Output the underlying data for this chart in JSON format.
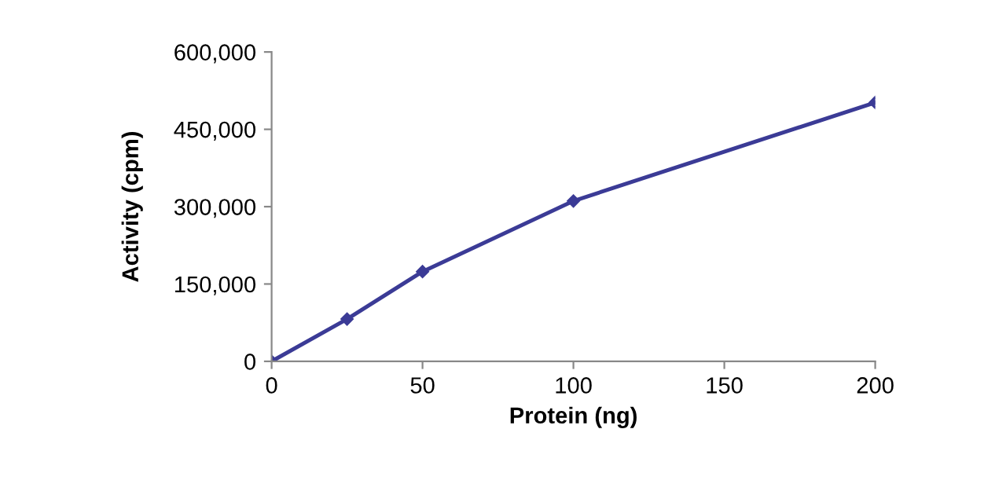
{
  "chart_data": {
    "type": "line",
    "xlabel": "Protein (ng)",
    "ylabel": "Activity (cpm)",
    "x": [
      0,
      25,
      50,
      100,
      200
    ],
    "series": [
      {
        "color": "#3b3b96",
        "values": [
          0,
          82000,
          174000,
          311000,
          502000
        ]
      }
    ],
    "xlim": [
      0,
      200
    ],
    "xticks": [
      0,
      50,
      100,
      150,
      200
    ],
    "ylim": [
      0,
      600000
    ],
    "yticks": [
      {
        "value": 0,
        "label": "0"
      },
      {
        "value": 150000,
        "label": "150,000"
      },
      {
        "value": 300000,
        "label": "300,000"
      },
      {
        "value": 450000,
        "label": "450,000"
      },
      {
        "value": 600000,
        "label": "600,000"
      }
    ],
    "marker": "diamond",
    "line_style": "solid",
    "grid": false,
    "legend": false
  }
}
